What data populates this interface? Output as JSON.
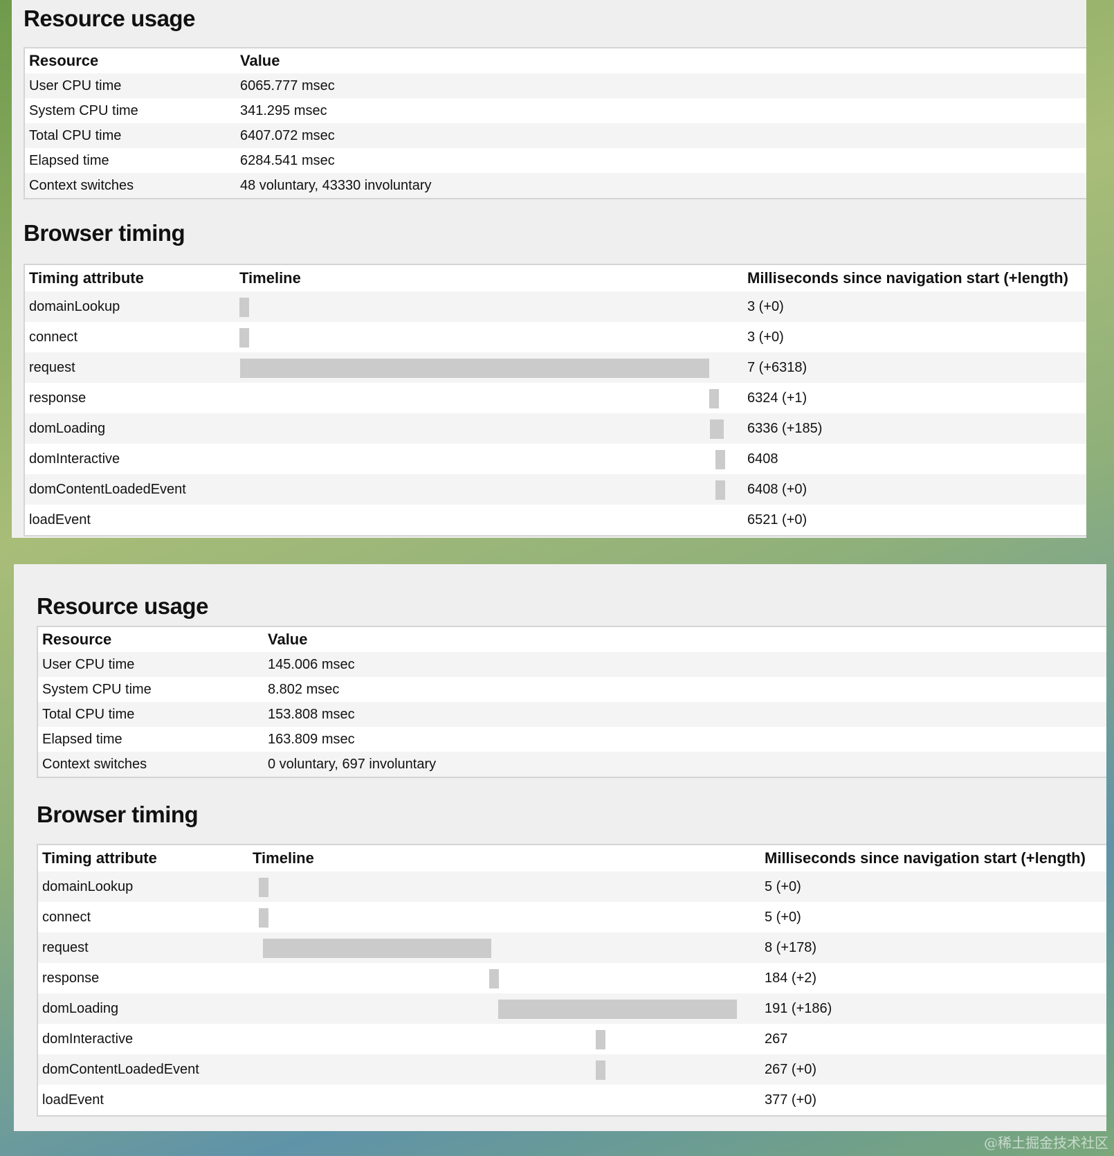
{
  "panels": [
    {
      "resource_title": "Resource usage",
      "resource_headers": [
        "Resource",
        "Value"
      ],
      "resources": [
        [
          "User CPU time",
          "6065.777 msec"
        ],
        [
          "System CPU time",
          "341.295 msec"
        ],
        [
          "Total CPU time",
          "6407.072 msec"
        ],
        [
          "Elapsed time",
          "6284.541 msec"
        ],
        [
          "Context switches",
          "48 voluntary, 43330 involuntary"
        ]
      ],
      "timing_title": "Browser timing",
      "timing_headers": [
        "Timing attribute",
        "Timeline",
        "Milliseconds since navigation start (+length)"
      ],
      "timings": [
        {
          "name": "domainLookup",
          "start": 3,
          "length": 0,
          "label": "3 (+0)",
          "bar": true
        },
        {
          "name": "connect",
          "start": 3,
          "length": 0,
          "label": "3 (+0)",
          "bar": true
        },
        {
          "name": "request",
          "start": 7,
          "length": 6318,
          "label": "7 (+6318)",
          "bar": true
        },
        {
          "name": "response",
          "start": 6324,
          "length": 1,
          "label": "6324 (+1)",
          "bar": true
        },
        {
          "name": "domLoading",
          "start": 6336,
          "length": 185,
          "label": "6336 (+185)",
          "bar": true
        },
        {
          "name": "domInteractive",
          "start": 6408,
          "length": 0,
          "label": "6408",
          "bar": true
        },
        {
          "name": "domContentLoadedEvent",
          "start": 6408,
          "length": 0,
          "label": "6408 (+0)",
          "bar": true
        },
        {
          "name": "loadEvent",
          "start": 6521,
          "length": 0,
          "label": "6521 (+0)",
          "bar": false
        }
      ]
    },
    {
      "resource_title": "Resource usage",
      "resource_headers": [
        "Resource",
        "Value"
      ],
      "resources": [
        [
          "User CPU time",
          "145.006 msec"
        ],
        [
          "System CPU time",
          "8.802 msec"
        ],
        [
          "Total CPU time",
          "153.808 msec"
        ],
        [
          "Elapsed time",
          "163.809 msec"
        ],
        [
          "Context switches",
          "0 voluntary, 697 involuntary"
        ]
      ],
      "timing_title": "Browser timing",
      "timing_headers": [
        "Timing attribute",
        "Timeline",
        "Milliseconds since navigation start (+length)"
      ],
      "timings": [
        {
          "name": "domainLookup",
          "start": 5,
          "length": 0,
          "label": "5 (+0)",
          "bar": true
        },
        {
          "name": "connect",
          "start": 5,
          "length": 0,
          "label": "5 (+0)",
          "bar": true
        },
        {
          "name": "request",
          "start": 8,
          "length": 178,
          "label": "8 (+178)",
          "bar": true
        },
        {
          "name": "response",
          "start": 184,
          "length": 2,
          "label": "184 (+2)",
          "bar": true
        },
        {
          "name": "domLoading",
          "start": 191,
          "length": 186,
          "label": "191 (+186)",
          "bar": true
        },
        {
          "name": "domInteractive",
          "start": 267,
          "length": 0,
          "label": "267",
          "bar": true
        },
        {
          "name": "domContentLoadedEvent",
          "start": 267,
          "length": 0,
          "label": "267 (+0)",
          "bar": true
        },
        {
          "name": "loadEvent",
          "start": 377,
          "length": 0,
          "label": "377 (+0)",
          "bar": false
        }
      ]
    }
  ],
  "watermark": "@稀土掘金技术社区",
  "colors": {
    "bar": "#cbcbcb",
    "panel": "#efefef"
  }
}
